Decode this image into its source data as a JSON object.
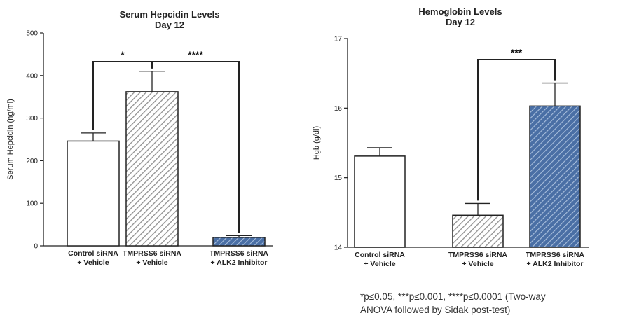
{
  "chart_data": [
    {
      "type": "bar",
      "title": [
        "Serum Hepcidin Levels",
        "Day 12"
      ],
      "ylabel": "Serum Hepcidin (ng/ml)",
      "ylim": [
        0,
        500
      ],
      "yticks": [
        0,
        100,
        200,
        300,
        400,
        500
      ],
      "categories": [
        [
          "Control siRNA",
          "+ Vehicle"
        ],
        [
          "TMPRSS6 siRNA",
          "+ Vehicle"
        ],
        [
          "TMPRSS6 siRNA",
          "+ ALK2 Inhibitor"
        ]
      ],
      "values": [
        246,
        362,
        20
      ],
      "errors": [
        19,
        48,
        4
      ],
      "fills": [
        "white",
        "gray-hatch",
        "blue-hatch"
      ],
      "significance": [
        {
          "from": 0,
          "to": 1,
          "label": "*"
        },
        {
          "from": 1,
          "to": 2,
          "label": "****"
        }
      ]
    },
    {
      "type": "bar",
      "title": [
        "Hemoglobin Levels",
        "Day 12"
      ],
      "ylabel": "Hgb (g/dl)",
      "ylim": [
        14,
        17
      ],
      "yticks": [
        14,
        15,
        16,
        17
      ],
      "categories": [
        [
          "Control siRNA",
          "+ Vehicle"
        ],
        [
          "TMPRSS6 siRNA",
          "+ Vehicle"
        ],
        [
          "TMPRSS6 siRNA",
          "+ ALK2 Inhibitor"
        ]
      ],
      "values": [
        15.31,
        14.46,
        16.03
      ],
      "errors": [
        0.12,
        0.17,
        0.33
      ],
      "fills": [
        "white",
        "gray-hatch",
        "blue-hatch"
      ],
      "significance": [
        {
          "from": 1,
          "to": 2,
          "label": "***"
        }
      ]
    }
  ],
  "footnote": {
    "line1": "*p≤0.05, ***p≤0.001, ****p≤0.0001 (Two-way",
    "line2": "ANOVA followed by Sidak post-test)"
  },
  "colors": {
    "bar_edge": "#222222",
    "gray_hatch": "#9a9a9a",
    "blue_fill": "#4a6fa5",
    "blue_hatch": "#9ab3d4"
  }
}
